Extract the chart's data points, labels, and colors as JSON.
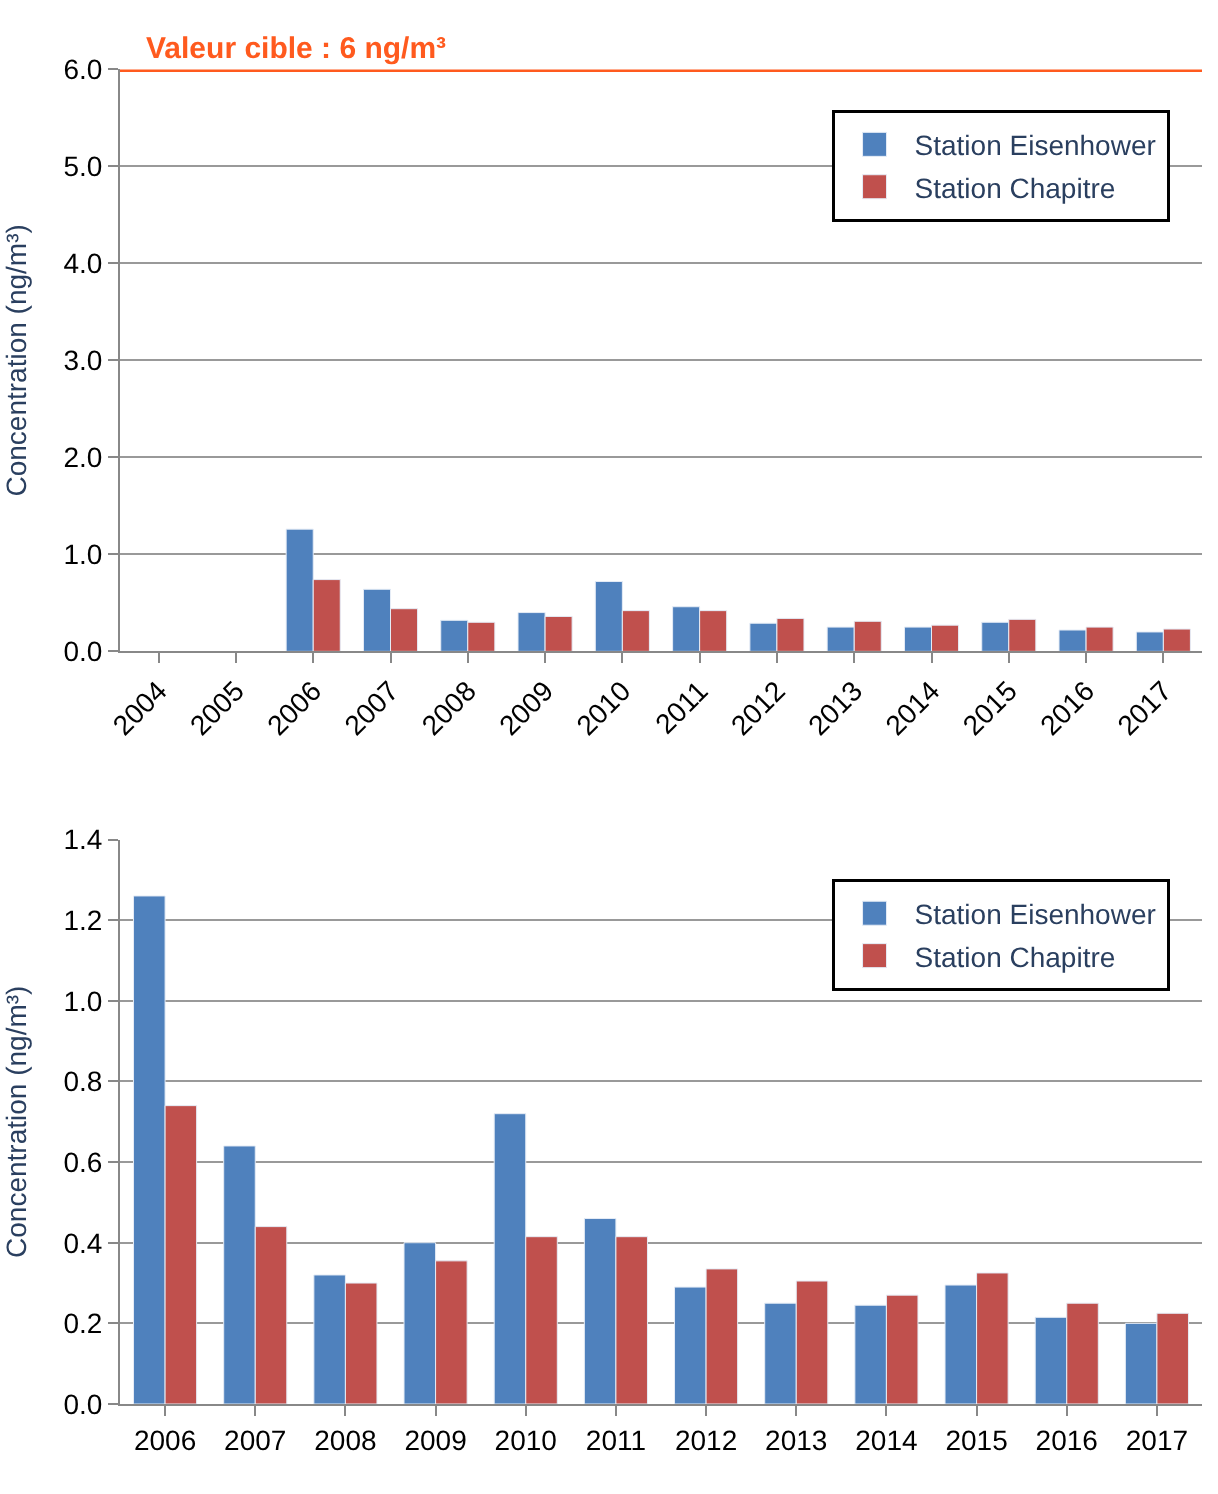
{
  "chart_data": [
    {
      "type": "bar",
      "ylabel": "Concentration (ng/m³)",
      "categories": [
        "2004",
        "2005",
        "2006",
        "2007",
        "2008",
        "2009",
        "2010",
        "2011",
        "2012",
        "2013",
        "2014",
        "2015",
        "2016",
        "2017"
      ],
      "series": [
        {
          "name": "Station Eisenhower",
          "color": "#4f81bd",
          "values": [
            null,
            null,
            1.26,
            0.64,
            0.32,
            0.4,
            0.72,
            0.46,
            0.29,
            0.25,
            0.25,
            0.3,
            0.22,
            0.2
          ]
        },
        {
          "name": "Station Chapitre",
          "color": "#c0504d",
          "values": [
            null,
            null,
            0.74,
            0.44,
            0.3,
            0.36,
            0.42,
            0.42,
            0.34,
            0.31,
            0.27,
            0.33,
            0.25,
            0.23
          ]
        }
      ],
      "ylim": [
        0,
        6
      ],
      "yticks": [
        {
          "value": 0,
          "label": "0.0"
        },
        {
          "value": 1,
          "label": "1.0"
        },
        {
          "value": 2,
          "label": "2.0"
        },
        {
          "value": 3,
          "label": "3.0"
        },
        {
          "value": 4,
          "label": "4.0"
        },
        {
          "value": 5,
          "label": "5.0"
        },
        {
          "value": 6,
          "label": "6.0"
        }
      ],
      "ref_lines": [
        {
          "axis": "y",
          "value": 6,
          "label": "Valeur cible : 6 ng/m³",
          "color": "#ff5a1e"
        }
      ],
      "grid": "y",
      "legend": "top right"
    },
    {
      "type": "bar",
      "ylabel": "Concentration (ng/m³)",
      "categories": [
        "2006",
        "2007",
        "2008",
        "2009",
        "2010",
        "2011",
        "2012",
        "2013",
        "2014",
        "2015",
        "2016",
        "2017"
      ],
      "series": [
        {
          "name": "Station Eisenhower",
          "color": "#4f81bd",
          "values": [
            1.26,
            0.64,
            0.32,
            0.4,
            0.72,
            0.46,
            0.29,
            0.25,
            0.245,
            0.295,
            0.215,
            0.2
          ]
        },
        {
          "name": "Station Chapitre",
          "color": "#c0504d",
          "values": [
            0.74,
            0.44,
            0.3,
            0.355,
            0.415,
            0.415,
            0.335,
            0.305,
            0.27,
            0.325,
            0.25,
            0.225
          ]
        }
      ],
      "ylim": [
        0,
        1.4
      ],
      "yticks": [
        {
          "value": 0,
          "label": "0.0"
        },
        {
          "value": 0.2,
          "label": "0.2"
        },
        {
          "value": 0.4,
          "label": "0.4"
        },
        {
          "value": 0.6,
          "label": "0.6"
        },
        {
          "value": 0.8,
          "label": "0.8"
        },
        {
          "value": 1.0,
          "label": "1.0"
        },
        {
          "value": 1.2,
          "label": "1.2"
        },
        {
          "value": 1.4,
          "label": "1.4"
        }
      ],
      "grid": "y",
      "legend": "top right"
    }
  ]
}
